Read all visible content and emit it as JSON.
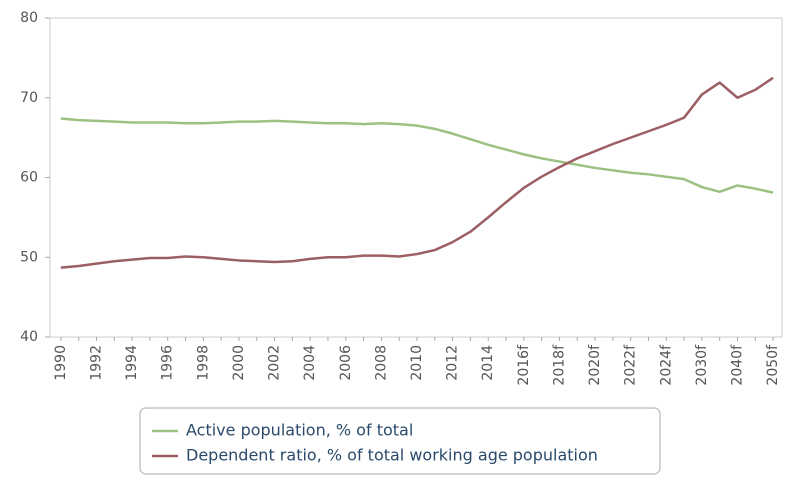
{
  "chart_data": {
    "type": "line",
    "categories": [
      "1990",
      null,
      "1992",
      null,
      "1994",
      null,
      "1996",
      null,
      "1998",
      null,
      "2000",
      null,
      "2002",
      null,
      "2004",
      null,
      "2006",
      null,
      "2008",
      null,
      "2010",
      null,
      "2012",
      null,
      "2014",
      null,
      "2016f",
      null,
      "2018f",
      null,
      "2020f",
      null,
      "2022f",
      null,
      "2024f",
      null,
      "2030f",
      null,
      "2040f",
      null,
      "2050f"
    ],
    "series": [
      {
        "name": "Active population, % of total",
        "color": "#9dc183",
        "values": [
          67.4,
          67.2,
          67.1,
          67.0,
          66.9,
          66.9,
          66.9,
          66.8,
          66.8,
          66.9,
          67.0,
          67.0,
          67.1,
          67.0,
          66.9,
          66.8,
          66.8,
          66.7,
          66.8,
          66.7,
          66.5,
          66.1,
          65.5,
          64.8,
          64.1,
          63.5,
          62.9,
          62.4,
          62.0,
          61.6,
          61.2,
          60.9,
          60.6,
          60.4,
          60.1,
          59.8,
          58.8,
          58.2,
          59.0,
          58.6,
          58.1
        ]
      },
      {
        "name": "Dependent ratio, % of total working age population",
        "color": "#9c5f63",
        "values": [
          48.7,
          48.9,
          49.2,
          49.5,
          49.7,
          49.9,
          49.9,
          50.1,
          50.0,
          49.8,
          49.6,
          49.5,
          49.4,
          49.5,
          49.8,
          50.0,
          50.0,
          50.2,
          50.2,
          50.1,
          50.4,
          50.9,
          51.9,
          53.2,
          55.0,
          56.9,
          58.7,
          60.1,
          61.3,
          62.4,
          63.3,
          64.2,
          65.0,
          65.8,
          66.6,
          67.5,
          70.4,
          71.9,
          70.0,
          71.0,
          72.5
        ]
      }
    ],
    "ylim": [
      40,
      80
    ],
    "yticks": [
      40,
      50,
      60,
      70,
      80
    ],
    "grid": false,
    "legend": "bottom"
  }
}
